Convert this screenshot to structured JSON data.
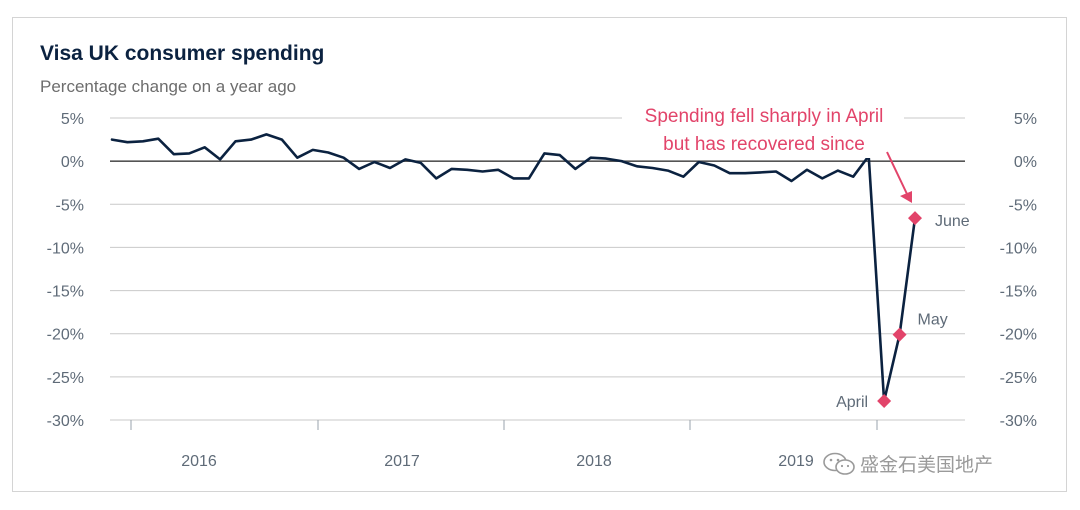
{
  "chart_data": {
    "type": "line",
    "title": "Visa UK consumer spending",
    "subtitle": "Percentage change on a year ago",
    "xlabel": "",
    "ylabel": "",
    "ylim": [
      -30,
      5
    ],
    "y_ticks": [
      "5%",
      "0%",
      "-5%",
      "-10%",
      "-15%",
      "-20%",
      "-25%",
      "-30%"
    ],
    "y_tick_values": [
      5,
      0,
      -5,
      -10,
      -15,
      -20,
      -25,
      -30
    ],
    "x_tick_labels": [
      "2016",
      "2017",
      "2018",
      "2019"
    ],
    "grid": true,
    "right_axis": true,
    "series": [
      {
        "values": [
          2.5,
          2.2,
          2.3,
          2.6,
          0.8,
          0.9,
          1.6,
          0.2,
          2.3,
          2.5,
          3.1,
          2.5,
          0.4,
          1.3,
          1.0,
          0.4,
          -0.9,
          -0.1,
          -0.8,
          0.2,
          -0.2,
          -2.0,
          -0.9,
          -1.0,
          -1.2,
          -1.0,
          -2.0,
          -2.0,
          0.9,
          0.7,
          -0.9,
          0.4,
          0.3,
          0.0,
          -0.6,
          -0.8,
          -1.1,
          -1.8,
          -0.1,
          -0.5,
          -1.4,
          -1.4,
          -1.3,
          -1.2,
          -2.3,
          -1.0,
          -2.0,
          -1.1,
          -1.8,
          0.6,
          -27.8,
          -20.1,
          -6.6
        ],
        "color": "#0b2240"
      }
    ],
    "highlights": [
      {
        "label": "April",
        "value": -27.8
      },
      {
        "label": "May",
        "value": -20.1
      },
      {
        "label": "June",
        "value": -6.6
      }
    ],
    "annotation": [
      "Spending fell sharply in April",
      "but has recovered since"
    ],
    "colors": {
      "line": "#0b2240",
      "highlight": "#e2446a",
      "grid": "#c9c9c9",
      "zero": "#555555"
    }
  },
  "watermark": "盛金石美国地产"
}
